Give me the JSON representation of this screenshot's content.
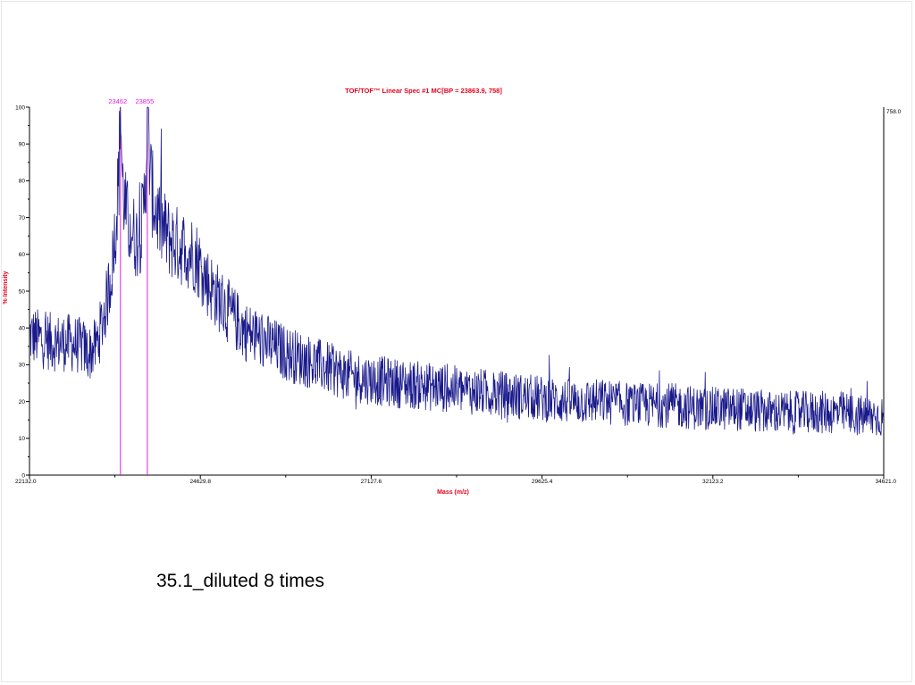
{
  "slide": {
    "caption": "35.1_diluted 8 times"
  },
  "chart_data": {
    "type": "line",
    "title": "TOF/TOF™ Linear Spec #1 MC[BP = 23863.9, 758]",
    "xlabel": "Mass (m/z)",
    "ylabel": "% Intensity",
    "xlim": [
      22132.0,
      34621.0
    ],
    "ylim": [
      0,
      100
    ],
    "x_tick_labels": [
      "22132.0",
      "24629.8",
      "27127.6",
      "29625.4",
      "32123.2",
      "34621.0"
    ],
    "y_tick_labels": [
      "0",
      "10",
      "20",
      "30",
      "40",
      "50",
      "60",
      "70",
      "80",
      "90",
      "100"
    ],
    "max_intensity_label": "758.0",
    "series": [
      {
        "color": "#1a1a8c",
        "x": [
          22132,
          22300,
          22500,
          22700,
          22900,
          23000,
          23100,
          23150,
          23200,
          23250,
          23300,
          23350,
          23400,
          23440,
          23462,
          23490,
          23530,
          23580,
          23640,
          23700,
          23760,
          23800,
          23835,
          23855,
          23880,
          23920,
          23980,
          24050,
          24150,
          24250,
          24350,
          24450,
          24550,
          24650,
          24750,
          24900,
          25100,
          25300,
          25600,
          25900,
          26200,
          26500,
          26800,
          27100,
          27500,
          28000,
          28500,
          29000,
          29500,
          30000,
          30500,
          31000,
          31500,
          32000,
          32500,
          33000,
          33500,
          34000,
          34300,
          34621
        ],
        "values": [
          38,
          37,
          36,
          36,
          35,
          33,
          35,
          38,
          42,
          46,
          52,
          58,
          70,
          82,
          100,
          80,
          72,
          68,
          66,
          64,
          66,
          72,
          84,
          100,
          88,
          77,
          72,
          68,
          65,
          63,
          62,
          61,
          60,
          56,
          52,
          48,
          43,
          39,
          36,
          33,
          31,
          29,
          27,
          26,
          25,
          24,
          23,
          22,
          21,
          20,
          20,
          19,
          19,
          18,
          18,
          17,
          17,
          17,
          16,
          16
        ]
      }
    ],
    "peak_markers": [
      {
        "label": "23462",
        "x": 23462,
        "color": "#e020e0"
      },
      {
        "label": "23855",
        "x": 23855,
        "color": "#e020e0"
      }
    ],
    "grid": false,
    "legend": "none"
  }
}
